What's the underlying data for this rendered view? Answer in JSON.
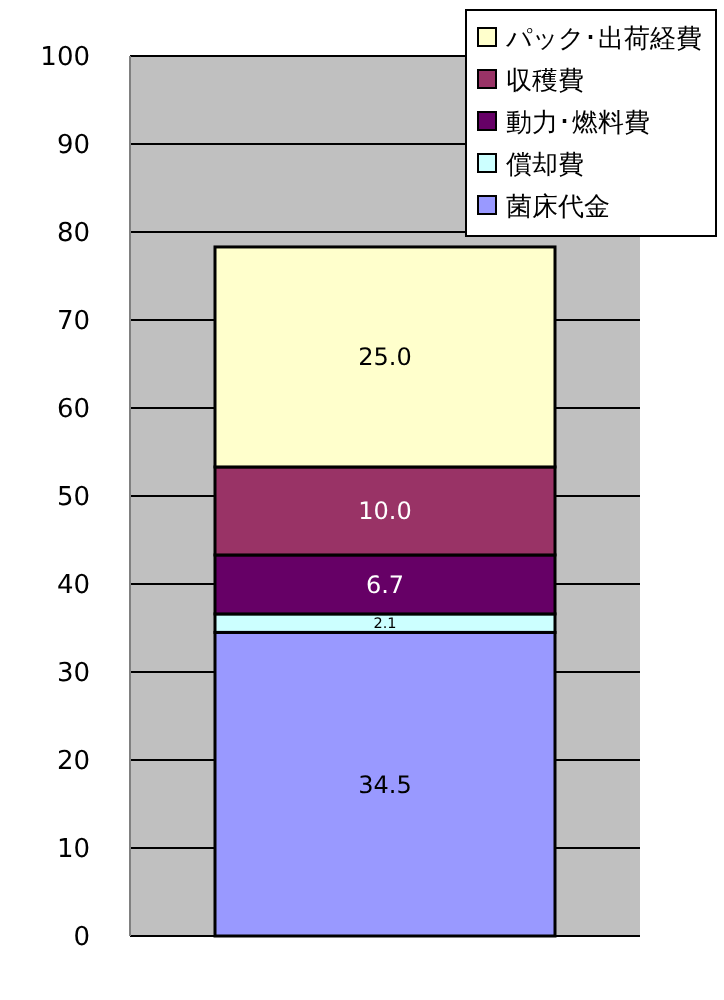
{
  "chart_data": {
    "type": "bar",
    "stacked": true,
    "categories": [
      null
    ],
    "series": [
      {
        "name": "菌床代金",
        "color": "#9999ff",
        "values": [
          34.5
        ],
        "value_labels": [
          "34.5"
        ]
      },
      {
        "name": "償却費",
        "color": "#ccffff",
        "values": [
          2.1
        ],
        "value_labels": [
          "2.1"
        ]
      },
      {
        "name": "動力･燃料費",
        "color": "#660066",
        "values": [
          6.7
        ],
        "value_labels": [
          "6.7"
        ]
      },
      {
        "name": "収穫費",
        "color": "#993366",
        "values": [
          10.0
        ],
        "value_labels": [
          "10.0"
        ]
      },
      {
        "name": "パック･出荷経費",
        "color": "#ffffcc",
        "values": [
          25.0
        ],
        "value_labels": [
          "25.0"
        ]
      }
    ],
    "ylim": [
      0,
      100
    ],
    "yticks": [
      0,
      10,
      20,
      30,
      40,
      50,
      60,
      70,
      80,
      90,
      100
    ],
    "grid": "y",
    "legend": "top right"
  }
}
